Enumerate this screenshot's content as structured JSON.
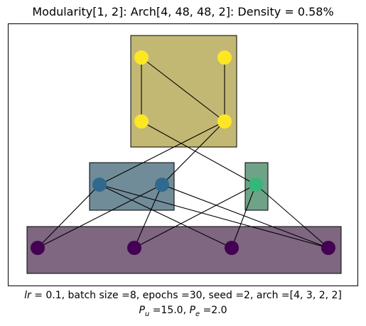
{
  "title": "Modularity[1, 2]: Arch[4, 48, 48, 2]: Density = 0.58%",
  "caption": {
    "line1": {
      "lr_symbol": "lr",
      "lr_value": "= 0.1, batch size =8, epochs =30, seed =2, arch =[4, 3, 2, 2]"
    },
    "line2": {
      "pu_symbol": "P",
      "pu_sub": "u",
      "pu_value": "=15.0,",
      "pe_symbol": "P",
      "pe_sub": "e",
      "pe_value": "=2.0"
    }
  },
  "colors": {
    "yellow": "#fde725",
    "blue": "#31688e",
    "green": "#35b779",
    "purple": "#440154",
    "box_top": "#c2b874",
    "box_mid_left": "#718c99",
    "box_mid_right": "#6fa388",
    "box_bottom": "#7f6681"
  }
}
